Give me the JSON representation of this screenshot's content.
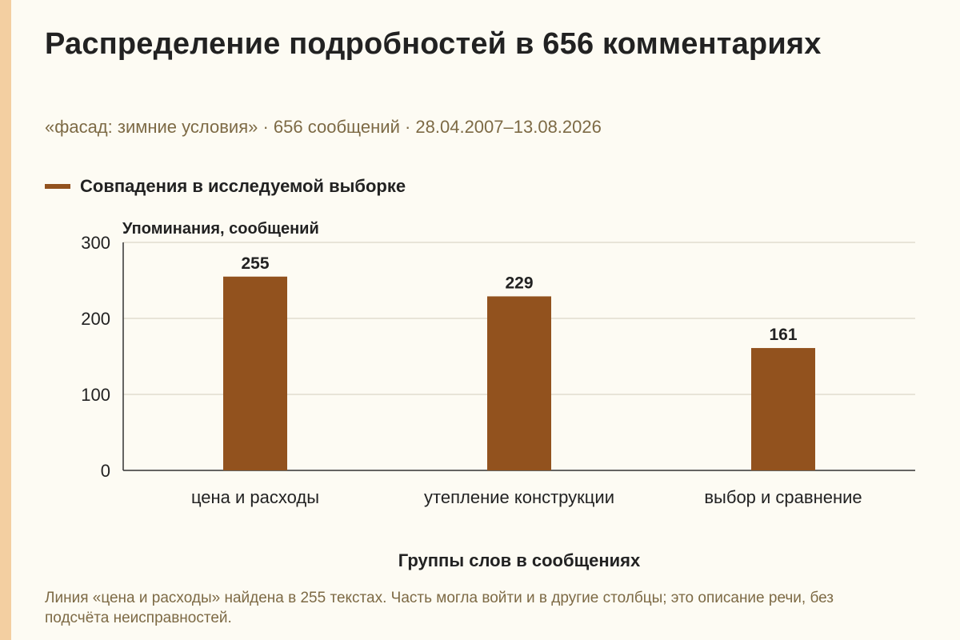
{
  "chart_data": {
    "type": "bar",
    "title": "Распределение подробностей в 656 комментариях",
    "subtitle": "«фасад: зимние условия» · 656 сообщений · 28.04.2007–13.08.2026",
    "xlabel": "Группы слов в сообщениях",
    "ylabel": "Упоминания, сообщений",
    "categories": [
      "цена и расходы",
      "утепление конструкции",
      "выбор и сравнение"
    ],
    "series": [
      {
        "name": "Совпадения в исследуемой выборке",
        "values": [
          255,
          229,
          161
        ]
      }
    ],
    "data_labels": [
      "255",
      "229",
      "161"
    ],
    "yticks": [
      0,
      100,
      200,
      300
    ],
    "ytick_labels": [
      "0",
      "100",
      "200",
      "300"
    ],
    "ylim": [
      0,
      300
    ],
    "grid": "horizontal",
    "legend_position": "top-left",
    "colors": {
      "bar": "#92521e",
      "grid": "#dcd6c8",
      "axis": "#333333"
    }
  },
  "footnote": "Линия «цена и расходы» найдена в 255 текстах. Часть могла войти и в другие столбцы; это описание речи, без подсчёта неисправностей."
}
